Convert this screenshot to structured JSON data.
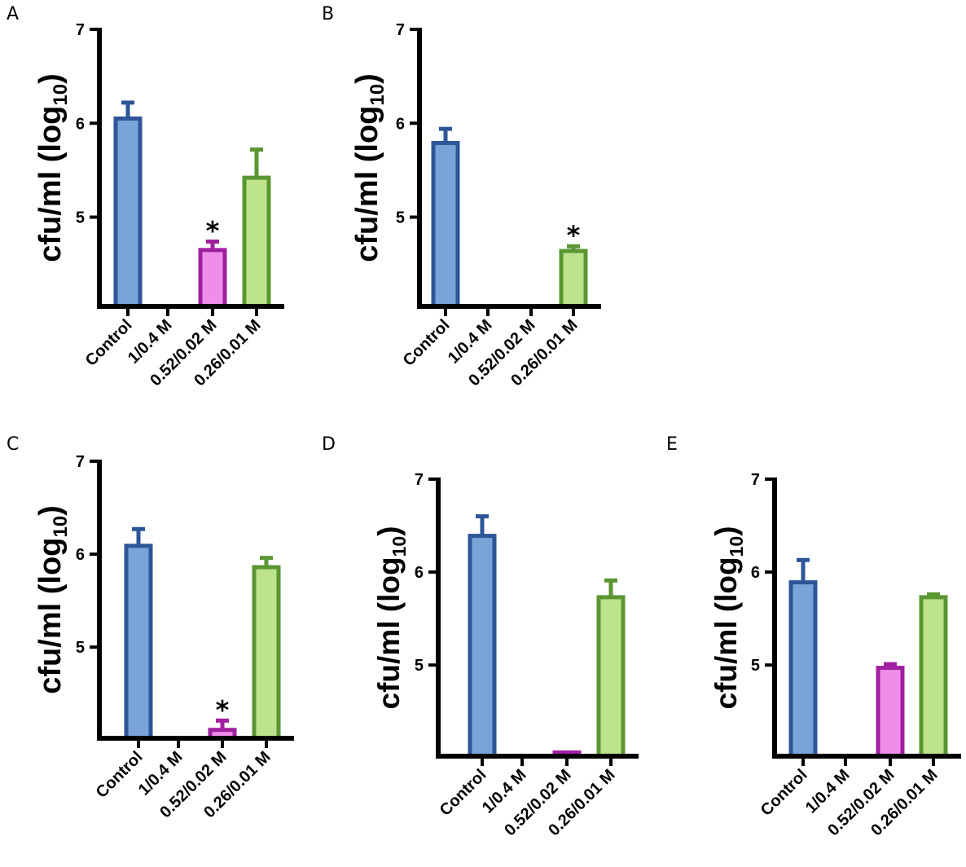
{
  "figure": {
    "panels": [
      "A",
      "B",
      "C",
      "D",
      "E"
    ]
  },
  "chart_data": [
    {
      "panel": "A",
      "type": "bar",
      "ylabel": "cfu/ml (log",
      "ylabel_subscript": "10",
      "ylabel_close": ")",
      "categories": [
        "Control",
        "1/0.4 M",
        "0.52/0.02 M",
        "0.26/0.01 M"
      ],
      "values": [
        6.05,
        null,
        4.65,
        5.42
      ],
      "errors": [
        0.17,
        null,
        0.09,
        0.3
      ],
      "significance": [
        null,
        null,
        "*",
        null
      ],
      "ylim": [
        4.05,
        7
      ],
      "yticks": [
        "5",
        "6",
        "7"
      ]
    },
    {
      "panel": "B",
      "type": "bar",
      "ylabel": "cfu/ml (log",
      "ylabel_subscript": "10",
      "ylabel_close": ")",
      "categories": [
        "Control",
        "1/0.4 M",
        "0.52/0.02 M",
        "0.26/0.01 M"
      ],
      "values": [
        5.79,
        null,
        null,
        4.64
      ],
      "errors": [
        0.15,
        null,
        null,
        0.05
      ],
      "significance": [
        null,
        null,
        null,
        "*"
      ],
      "ylim": [
        4.05,
        7
      ],
      "yticks": [
        "5",
        "6",
        "7"
      ]
    },
    {
      "panel": "C",
      "type": "bar",
      "ylabel": "cfu/ml (log",
      "ylabel_subscript": "10",
      "ylabel_close": ")",
      "categories": [
        "Control",
        "1/0.4 M",
        "0.52/0.02 M",
        "0.26/0.01 M"
      ],
      "values": [
        6.09,
        null,
        4.11,
        5.86
      ],
      "errors": [
        0.18,
        null,
        0.1,
        0.1
      ],
      "significance": [
        null,
        null,
        "*",
        null
      ],
      "ylim": [
        4.02,
        7
      ],
      "yticks": [
        "5",
        "6",
        "7"
      ]
    },
    {
      "panel": "D",
      "type": "bar",
      "ylabel": "cfu/ml (log",
      "ylabel_subscript": "10",
      "ylabel_close": ")",
      "categories": [
        "Control",
        "1/0.4 M",
        "0.52/0.02 M",
        "0.26/0.01 M"
      ],
      "values": [
        6.39,
        null,
        4.06,
        5.73
      ],
      "errors": [
        0.21,
        null,
        0,
        0.18
      ],
      "significance": [
        null,
        null,
        null,
        null
      ],
      "ylim": [
        4.02,
        7
      ],
      "yticks": [
        "5",
        "6",
        "7"
      ]
    },
    {
      "panel": "E",
      "type": "bar",
      "ylabel": "cfu/ml (log",
      "ylabel_subscript": "10",
      "ylabel_close": ")",
      "categories": [
        "Control",
        "1/0.4 M",
        "0.52/0.02 M",
        "0.26/0.01 M"
      ],
      "values": [
        5.89,
        null,
        4.97,
        5.73
      ],
      "errors": [
        0.24,
        null,
        0.04,
        0.03
      ],
      "significance": [
        null,
        null,
        null,
        null
      ],
      "ylim": [
        4.02,
        7
      ],
      "yticks": [
        "5",
        "6",
        "7"
      ]
    }
  ],
  "colors": {
    "series_fill": [
      "#7aa3d9",
      "#7aa3d9",
      "#ee8ee8",
      "#bde38d"
    ],
    "series_edge": [
      "#2e5597",
      "#2e5597",
      "#a01fa1",
      "#5a9632"
    ]
  }
}
